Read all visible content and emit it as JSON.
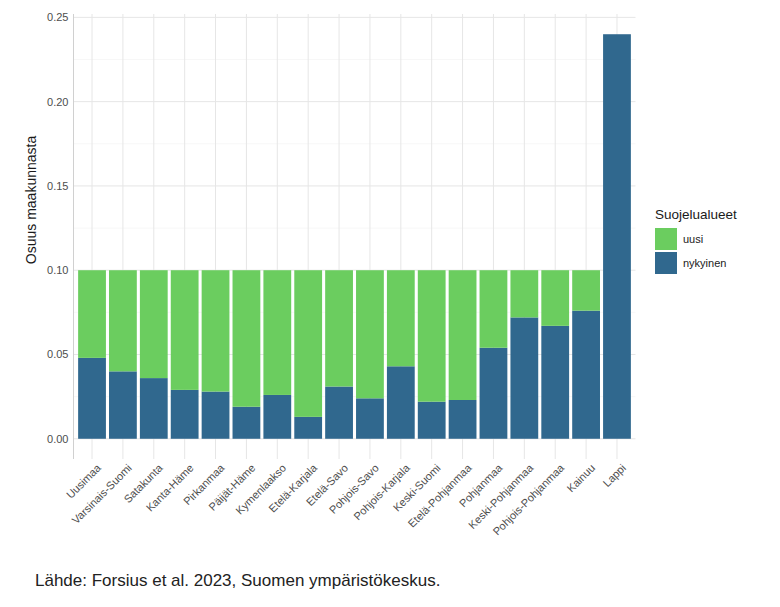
{
  "chart_data": {
    "type": "bar",
    "stacked": true,
    "y_label": "Osuus maakunnasta",
    "legend_title": "Suojelualueet",
    "legend": "right",
    "caption": "Lähde: Forsius et al. 2023, Suomen ympäristökeskus.",
    "grid": true,
    "categories": [
      "Uusimaa",
      "Varsinais-Suomi",
      "Satakunta",
      "Kanta-Häme",
      "Pirkanmaa",
      "Päijät-Häme",
      "Kymenlaakso",
      "Etelä-Karjala",
      "Etelä-Savo",
      "Pohjois-Savo",
      "Pohjois-Karjala",
      "Keski-Suomi",
      "Etelä-Pohjanmaa",
      "Pohjanmaa",
      "Keski-Pohjanmaa",
      "Pohjois-Pohjanmaa",
      "Kainuu",
      "Lappi"
    ],
    "series": [
      {
        "name": "uusi",
        "color": "#6bcd5f",
        "values": [
          0.052,
          0.06,
          0.064,
          0.071,
          0.072,
          0.081,
          0.074,
          0.087,
          0.069,
          0.076,
          0.057,
          0.078,
          0.077,
          0.046,
          0.028,
          0.033,
          0.024,
          0
        ]
      },
      {
        "name": "nykyinen",
        "color": "#30688e",
        "values": [
          0.048,
          0.04,
          0.036,
          0.029,
          0.028,
          0.019,
          0.026,
          0.013,
          0.031,
          0.024,
          0.043,
          0.022,
          0.023,
          0.054,
          0.072,
          0.067,
          0.076,
          0.24
        ]
      }
    ],
    "ylim": [
      -0.012,
      0.252
    ],
    "yticks": [
      {
        "value": 0,
        "label": "0.00"
      },
      0.05,
      {
        "value": 0.1,
        "label": "0.10"
      },
      0.15,
      {
        "value": 0.2,
        "label": "0.20"
      },
      0.25
    ]
  }
}
